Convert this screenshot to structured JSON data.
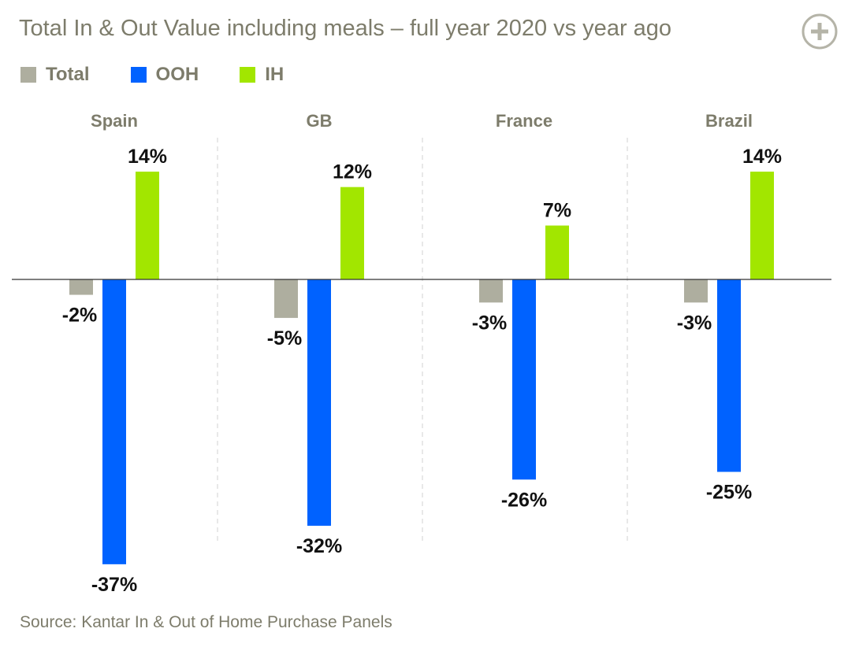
{
  "title": "Total In & Out Value including meals – full year 2020 vs year ago",
  "expand_icon": "plus-circle-icon",
  "source": "Source: Kantar In & Out of Home Purchase Panels",
  "colors": {
    "total": "#aeae9f",
    "ooh": "#0062ff",
    "ih": "#a2e600",
    "text_muted": "#7d7c6b",
    "text_dark": "#111111"
  },
  "chart_data": {
    "type": "bar",
    "categories": [
      "Spain",
      "GB",
      "France",
      "Brazil"
    ],
    "series": [
      {
        "name": "Total",
        "values": [
          -2,
          -5,
          -3,
          -3
        ],
        "labels": [
          "-2%",
          "-5%",
          "-3%",
          "-3%"
        ]
      },
      {
        "name": "OOH",
        "values": [
          -37,
          -32,
          -26,
          -25
        ],
        "labels": [
          "-37%",
          "-32%",
          "-26%",
          "-25%"
        ]
      },
      {
        "name": "IH",
        "values": [
          14,
          12,
          7,
          14
        ],
        "labels": [
          "14%",
          "12%",
          "7%",
          "14%"
        ]
      }
    ],
    "title": "Total In & Out Value including meals – full year 2020 vs year ago",
    "xlabel": "",
    "ylabel": "",
    "ylim": [
      -37,
      14
    ],
    "unit": "%",
    "legend": "top-left",
    "grid": false
  }
}
